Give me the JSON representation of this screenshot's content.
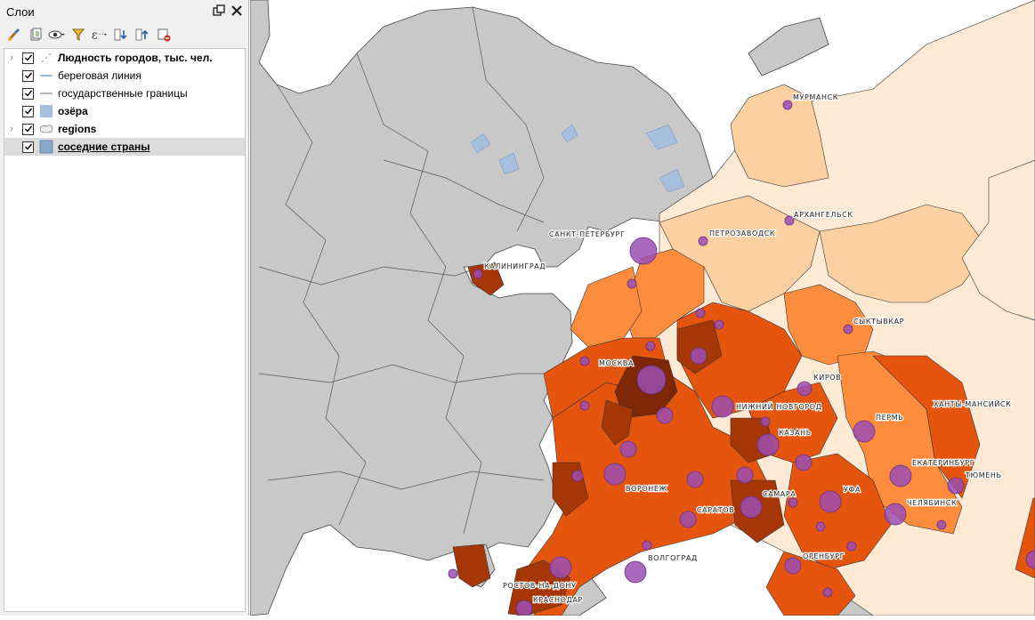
{
  "panel": {
    "title": "Слои",
    "layers": [
      {
        "name": "Людность городов, тыс. чел.",
        "checked": true,
        "expandable": true,
        "bold": true,
        "symbol": "points-icon"
      },
      {
        "name": "береговая линия",
        "checked": true,
        "expandable": false,
        "bold": false,
        "symbol": "line-icon"
      },
      {
        "name": "государственные границы",
        "checked": true,
        "expandable": false,
        "bold": false,
        "symbol": "line-icon"
      },
      {
        "name": "озёра",
        "checked": true,
        "expandable": false,
        "bold": true,
        "symbol": "fill-icon"
      },
      {
        "name": "regions",
        "checked": true,
        "expandable": true,
        "bold": true,
        "symbol": "polygon-icon"
      },
      {
        "name": "соседние страны",
        "checked": true,
        "expandable": false,
        "bold": true,
        "symbol": "fill-icon",
        "selected": true
      }
    ]
  },
  "colors": {
    "sea": "#ffffff",
    "neighbors": "#c8c8c8",
    "lakes": "#a5bfdd",
    "class1": "#fee9d5",
    "class2": "#fdd0a2",
    "class3": "#fd8d3c",
    "class4": "#e6550d",
    "class5": "#a63603",
    "class6": "#7f2704",
    "cities": "#9b4fb3"
  },
  "map": {
    "cities": [
      {
        "name": "МУРМАНСК"
      },
      {
        "name": "АРХАНГЕЛЬСК"
      },
      {
        "name": "САНКТ-ПЕТЕРБУРГ"
      },
      {
        "name": "ПЕТРОЗАВОДСК"
      },
      {
        "name": "КАЛИНИНГРАД"
      },
      {
        "name": "СЫКТЫВКАР"
      },
      {
        "name": "МОСКВА"
      },
      {
        "name": "КИРОВ"
      },
      {
        "name": "НИЖНИЙ НОВГОРОД"
      },
      {
        "name": "ХАНТЫ-МАНСИЙСК"
      },
      {
        "name": "ПЕРМЬ"
      },
      {
        "name": "КАЗАНЬ"
      },
      {
        "name": "ЕКАТЕРИНБУРГ"
      },
      {
        "name": "ТЮМЕНЬ"
      },
      {
        "name": "ВОРОНЕЖ"
      },
      {
        "name": "САМАРА"
      },
      {
        "name": "УФА"
      },
      {
        "name": "ЧЕЛЯБИНСК"
      },
      {
        "name": "САРАТОВ"
      },
      {
        "name": "ОРЕНБУРГ"
      },
      {
        "name": "ВОЛГОГРАД"
      },
      {
        "name": "РОСТОВ-НА-ДОНУ"
      },
      {
        "name": "КРАСНОДАР"
      }
    ]
  }
}
